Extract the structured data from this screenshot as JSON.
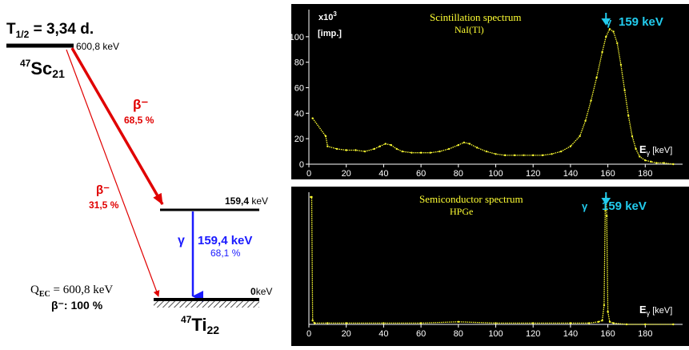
{
  "colors": {
    "beta": "#e00000",
    "gamma": "#1a1aff",
    "spectrum": "#ffff33",
    "axis": "#ffffff",
    "peak_label": "#22ccee",
    "panel_bg": "#000000"
  },
  "decay_scheme": {
    "half_life_T": "T",
    "half_life_sub": "1/2",
    "half_life_value": " = 3,34 d.",
    "parent_mass": "47",
    "parent_symbol": "Sc",
    "parent_sub": "21",
    "parent_level_energy": "600,8 keV",
    "beta1_label": "β⁻",
    "beta1_intensity": "68,5 %",
    "beta2_label": "β⁻",
    "beta2_intensity": "31,5 %",
    "excited_level_value": "159,4",
    "excited_level_unit": " keV",
    "gamma_label": "γ",
    "gamma_energy": "159,4 keV",
    "gamma_intensity": "68,1 %",
    "ground_level_value": "0",
    "ground_level_unit": "keV",
    "q_label": "Q",
    "q_sub": "EC",
    "q_value": " = 600,8 keV",
    "beta_total": "β⁻: 100 %",
    "daughter_mass": "47",
    "daughter_symbol": "Ti",
    "daughter_sub": "22"
  },
  "chart_data": [
    {
      "type": "scatter",
      "title": "Scintillation spectrum",
      "subtitle": "NaI(Tl)",
      "xlabel_main": "E",
      "xlabel_sub": "γ",
      "xlabel_unit": " [keV]",
      "ylabel": "[imp.]",
      "y_multiplier_base": "x10",
      "y_multiplier_exp": "3",
      "xlim": [
        0,
        200
      ],
      "ylim": [
        0,
        115
      ],
      "xticks": [
        0,
        20,
        40,
        60,
        80,
        100,
        120,
        140,
        160,
        180
      ],
      "yticks": [
        0,
        20,
        40,
        60,
        80,
        100
      ],
      "peak_symbol": "γ",
      "peak_label": "159 keV",
      "peak_energy": 159,
      "series": [
        {
          "x": [
            2,
            9,
            10,
            15,
            20,
            25,
            30,
            35,
            38,
            41,
            44,
            47,
            50,
            55,
            60,
            65,
            70,
            75,
            80,
            83,
            86,
            90,
            95,
            100,
            105,
            110,
            115,
            120,
            125,
            130,
            135,
            140,
            145,
            148,
            151,
            154,
            157,
            159,
            161,
            163,
            165,
            167,
            169,
            171,
            173,
            175,
            177,
            180,
            183,
            186,
            190,
            195
          ],
          "y": [
            36,
            22,
            14,
            12,
            11,
            11,
            10,
            12,
            14,
            16,
            15,
            12,
            10,
            9,
            9,
            9,
            10,
            12,
            15,
            17,
            16,
            13,
            10,
            8,
            7,
            7,
            7,
            7,
            7,
            8,
            10,
            14,
            22,
            34,
            50,
            68,
            88,
            100,
            106,
            104,
            95,
            78,
            58,
            38,
            22,
            12,
            6,
            3,
            2,
            1,
            1,
            0
          ]
        }
      ]
    },
    {
      "type": "scatter",
      "title": "Semiconductor spectrum",
      "subtitle": "HPGe",
      "xlabel_main": "E",
      "xlabel_sub": "γ",
      "xlabel_unit": " [keV]",
      "xlim": [
        0,
        200
      ],
      "ylim": [
        0,
        100
      ],
      "xticks": [
        0,
        20,
        40,
        60,
        80,
        100,
        120,
        140,
        160,
        180
      ],
      "peak_symbol": "γ",
      "peak_label": "159 keV",
      "peak_energy": 159,
      "series": [
        {
          "x": [
            1,
            1.5,
            2,
            3,
            10,
            20,
            40,
            60,
            80,
            100,
            120,
            140,
            150,
            155,
            157,
            158,
            158.6,
            159,
            159.4,
            160,
            161,
            163,
            170,
            180,
            195
          ],
          "y": [
            100,
            100,
            3,
            1,
            1,
            1,
            1,
            1,
            2,
            1,
            1,
            1,
            1,
            2,
            3,
            15,
            90,
            100,
            85,
            10,
            2,
            1,
            0,
            0,
            0
          ]
        }
      ]
    }
  ]
}
